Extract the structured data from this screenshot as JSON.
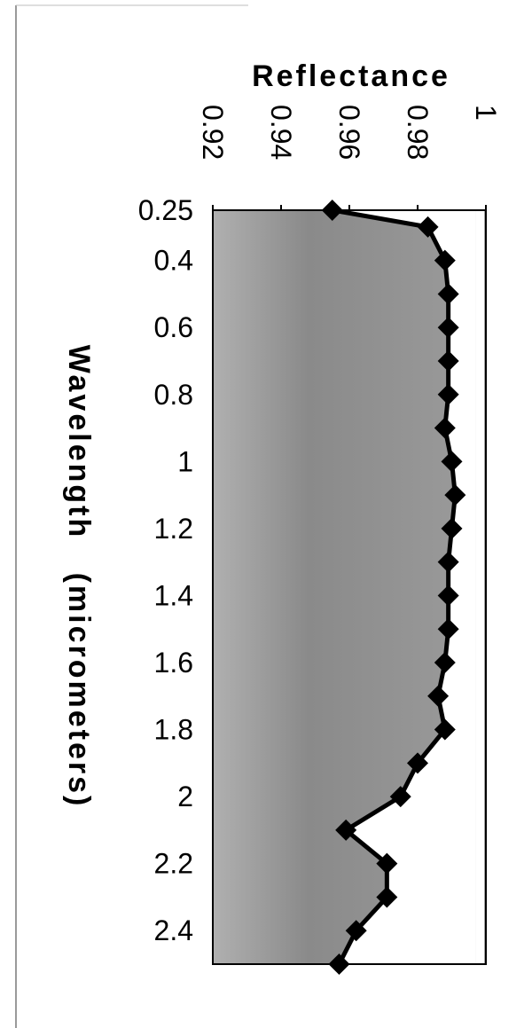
{
  "chart_data": {
    "type": "line",
    "orientation": "rotated",
    "xlabel": "Wavelength   (micrometers)",
    "ylabel": "Reflectance",
    "x_ticks": [
      "0.25",
      "0.4",
      "0.6",
      "0.8",
      "1",
      "1.2",
      "1.4",
      "1.6",
      "1.8",
      "2",
      "2.2",
      "2.4"
    ],
    "y_ticks": [
      "0.92",
      "0.94",
      "0.96",
      "0.98",
      "1"
    ],
    "ylim": [
      0.92,
      1.0
    ],
    "series": [
      {
        "x": [
          0.25,
          0.3,
          0.4,
          0.5,
          0.6,
          0.7,
          0.8,
          0.9,
          1.0,
          1.1,
          1.2,
          1.3,
          1.4,
          1.5,
          1.6,
          1.7,
          1.8,
          1.9,
          2.0,
          2.1,
          2.2,
          2.3,
          2.4,
          2.5
        ],
        "values": [
          0.955,
          0.983,
          0.988,
          0.989,
          0.989,
          0.989,
          0.989,
          0.988,
          0.99,
          0.991,
          0.99,
          0.989,
          0.989,
          0.989,
          0.988,
          0.986,
          0.988,
          0.98,
          0.975,
          0.959,
          0.971,
          0.971,
          0.962,
          0.957
        ],
        "marker": "diamond",
        "color": "#000000"
      }
    ],
    "plot_background": "#9a9a9a",
    "grid": false,
    "legend": "none"
  }
}
